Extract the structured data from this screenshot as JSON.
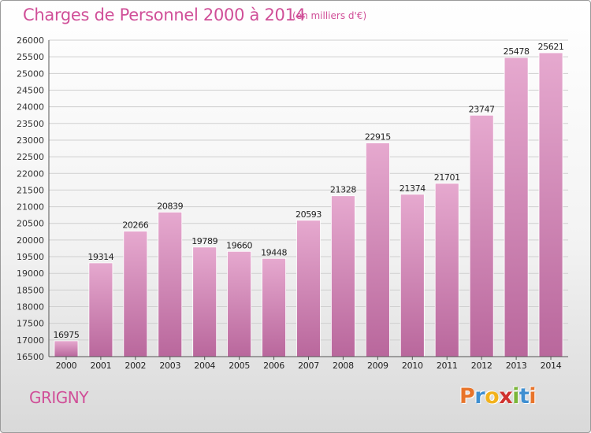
{
  "header": {
    "title": "Charges de Personnel 2000 à 2014",
    "subtitle": "(en milliers d'€)"
  },
  "footer": {
    "commune": "GRIGNY",
    "logo_text": "Proxiti",
    "logo_colors": [
      "#e8742a",
      "#3f8fd1",
      "#f2b21d",
      "#d0322f",
      "#7bb63a",
      "#3f8fd1",
      "#e8742a"
    ]
  },
  "colors": {
    "bar_light": "#e6a9cf",
    "bar_dark": "#b9679c",
    "accent": "#d04f98",
    "grid": "#cfcfcf"
  },
  "chart_data": {
    "type": "bar",
    "title": "Charges de Personnel 2000 à 2014",
    "subtitle": "(en milliers d'€)",
    "categories": [
      "2000",
      "2001",
      "2002",
      "2003",
      "2004",
      "2005",
      "2006",
      "2007",
      "2008",
      "2009",
      "2010",
      "2011",
      "2012",
      "2013",
      "2014"
    ],
    "values": [
      16975,
      19314,
      20266,
      20839,
      19789,
      19660,
      19448,
      20593,
      21328,
      22915,
      21374,
      21701,
      23747,
      25478,
      25621
    ],
    "ylim": [
      16500,
      26000
    ],
    "yticks": [
      16500,
      17000,
      17500,
      18000,
      18500,
      19000,
      19500,
      20000,
      20500,
      21000,
      21500,
      22000,
      22500,
      23000,
      23500,
      24000,
      24500,
      25000,
      25500,
      26000
    ],
    "grid": true
  }
}
